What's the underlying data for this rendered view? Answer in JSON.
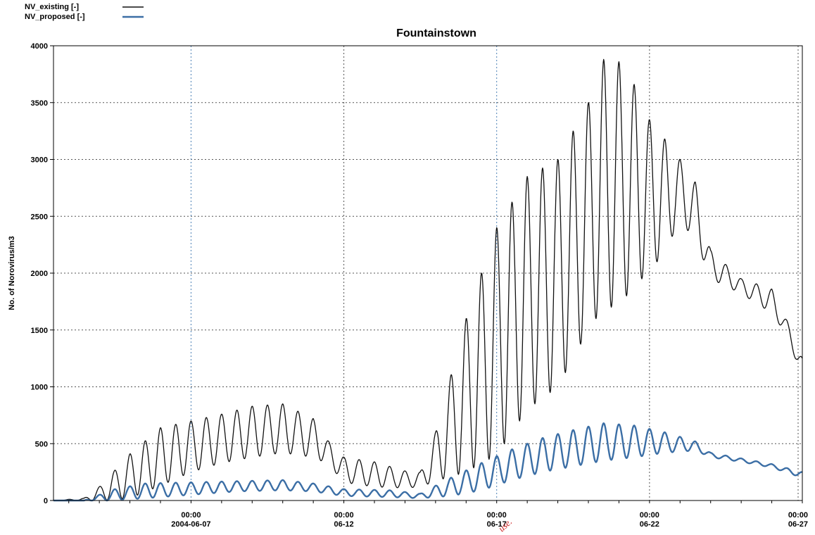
{
  "chart_data": {
    "type": "line",
    "title": "Fountainstown",
    "ylabel": "No. of Norovirus/m3",
    "xlabel": "",
    "ylim": [
      0,
      4000
    ],
    "xlim": [
      "2004-06-02 12:00",
      "2004-06-27 00:00"
    ],
    "yticks": [
      0,
      500,
      1000,
      1500,
      2000,
      2500,
      3000,
      3500,
      4000
    ],
    "xticks": [
      {
        "time": "00:00",
        "date": "2004-06-07"
      },
      {
        "time": "00:00",
        "date": "06-12"
      },
      {
        "time": "00:00",
        "date": "06-17"
      },
      {
        "time": "00:00",
        "date": "06-22"
      },
      {
        "time": "00:00",
        "date": "06-27"
      }
    ],
    "grid": true,
    "legend_position": "top-left",
    "colors": {
      "existing": "#111111",
      "proposed": "#3b6ea5",
      "grid": "#555555",
      "watermark": "#cc2222"
    },
    "watermark_text": "use.",
    "series": [
      {
        "name": "NV_existing",
        "legend_label": "NV_existing   [-]",
        "period_days": 0.5,
        "segments": [
          {
            "date": "2004-06-02 12:00",
            "peak": 0,
            "trough": 0
          },
          {
            "date": "2004-06-03 12:00",
            "peak": 20,
            "trough": 0
          },
          {
            "date": "2004-06-04 00:00",
            "peak": 120,
            "trough": 0
          },
          {
            "date": "2004-06-05 00:00",
            "peak": 410,
            "trough": 20
          },
          {
            "date": "2004-06-06 00:00",
            "peak": 640,
            "trough": 130
          },
          {
            "date": "2004-06-07 00:00",
            "peak": 700,
            "trough": 250
          },
          {
            "date": "2004-06-08 00:00",
            "peak": 760,
            "trough": 330
          },
          {
            "date": "2004-06-09 00:00",
            "peak": 830,
            "trough": 380
          },
          {
            "date": "2004-06-10 00:00",
            "peak": 850,
            "trough": 420
          },
          {
            "date": "2004-06-11 00:00",
            "peak": 720,
            "trough": 380
          },
          {
            "date": "2004-06-11 12:00",
            "peak": 520,
            "trough": 320
          },
          {
            "date": "2004-06-12 00:00",
            "peak": 380,
            "trough": 160
          },
          {
            "date": "2004-06-13 00:00",
            "peak": 340,
            "trough": 120
          },
          {
            "date": "2004-06-14 00:00",
            "peak": 260,
            "trough": 110
          },
          {
            "date": "2004-06-14 12:00",
            "peak": 250,
            "trough": 120
          },
          {
            "date": "2004-06-15 00:00",
            "peak": 600,
            "trough": 170
          },
          {
            "date": "2004-06-16 00:00",
            "peak": 1600,
            "trough": 250
          },
          {
            "date": "2004-06-17 00:00",
            "peak": 2400,
            "trough": 400
          },
          {
            "date": "2004-06-18 00:00",
            "peak": 2850,
            "trough": 800
          },
          {
            "date": "2004-06-19 00:00",
            "peak": 3000,
            "trough": 1000
          },
          {
            "date": "2004-06-20 00:00",
            "peak": 3500,
            "trough": 1500
          },
          {
            "date": "2004-06-20 12:00",
            "peak": 3880,
            "trough": 1700
          },
          {
            "date": "2004-06-21 00:00",
            "peak": 3860,
            "trough": 1700
          },
          {
            "date": "2004-06-21 12:00",
            "peak": 3660,
            "trough": 1900
          },
          {
            "date": "2004-06-22 00:00",
            "peak": 3350,
            "trough": 2000
          },
          {
            "date": "2004-06-22 12:00",
            "peak": 3180,
            "trough": 2200
          },
          {
            "date": "2004-06-23 00:00",
            "peak": 3000,
            "trough": 2450
          },
          {
            "date": "2004-06-23 12:00",
            "peak": 2800,
            "trough": 2300
          },
          {
            "date": "2004-06-24 00:00",
            "peak": 2200,
            "trough": 1950
          },
          {
            "date": "2004-06-25 00:00",
            "peak": 1950,
            "trough": 1820
          },
          {
            "date": "2004-06-26 00:00",
            "peak": 1860,
            "trough": 1650
          },
          {
            "date": "2004-06-26 12:00",
            "peak": 1580,
            "trough": 1450
          },
          {
            "date": "2004-06-27 00:00",
            "peak": 1250,
            "trough": 1080
          }
        ]
      },
      {
        "name": "NV_proposed",
        "legend_label": "NV_proposed [-]",
        "period_days": 0.5,
        "segments": [
          {
            "date": "2004-06-02 12:00",
            "peak": 0,
            "trough": 0
          },
          {
            "date": "2004-06-03 12:00",
            "peak": 0,
            "trough": 0
          },
          {
            "date": "2004-06-04 12:00",
            "peak": 100,
            "trough": 0
          },
          {
            "date": "2004-06-05 12:00",
            "peak": 150,
            "trough": 20
          },
          {
            "date": "2004-06-07 00:00",
            "peak": 160,
            "trough": 50
          },
          {
            "date": "2004-06-08 12:00",
            "peak": 170,
            "trough": 80
          },
          {
            "date": "2004-06-10 00:00",
            "peak": 180,
            "trough": 90
          },
          {
            "date": "2004-06-11 00:00",
            "peak": 150,
            "trough": 80
          },
          {
            "date": "2004-06-12 00:00",
            "peak": 100,
            "trough": 40
          },
          {
            "date": "2004-06-13 12:00",
            "peak": 90,
            "trough": 30
          },
          {
            "date": "2004-06-14 12:00",
            "peak": 60,
            "trough": 20
          },
          {
            "date": "2004-06-15 12:00",
            "peak": 200,
            "trough": 40
          },
          {
            "date": "2004-06-16 12:00",
            "peak": 330,
            "trough": 90
          },
          {
            "date": "2004-06-17 12:00",
            "peak": 450,
            "trough": 180
          },
          {
            "date": "2004-06-18 12:00",
            "peak": 550,
            "trough": 250
          },
          {
            "date": "2004-06-19 12:00",
            "peak": 620,
            "trough": 300
          },
          {
            "date": "2004-06-20 12:00",
            "peak": 680,
            "trough": 350
          },
          {
            "date": "2004-06-21 12:00",
            "peak": 660,
            "trough": 380
          },
          {
            "date": "2004-06-22 12:00",
            "peak": 600,
            "trough": 420
          },
          {
            "date": "2004-06-23 12:00",
            "peak": 520,
            "trough": 440
          },
          {
            "date": "2004-06-24 00:00",
            "peak": 420,
            "trough": 380
          },
          {
            "date": "2004-06-25 00:00",
            "peak": 370,
            "trough": 340
          },
          {
            "date": "2004-06-26 00:00",
            "peak": 320,
            "trough": 290
          },
          {
            "date": "2004-06-27 00:00",
            "peak": 250,
            "trough": 200
          }
        ]
      }
    ]
  }
}
